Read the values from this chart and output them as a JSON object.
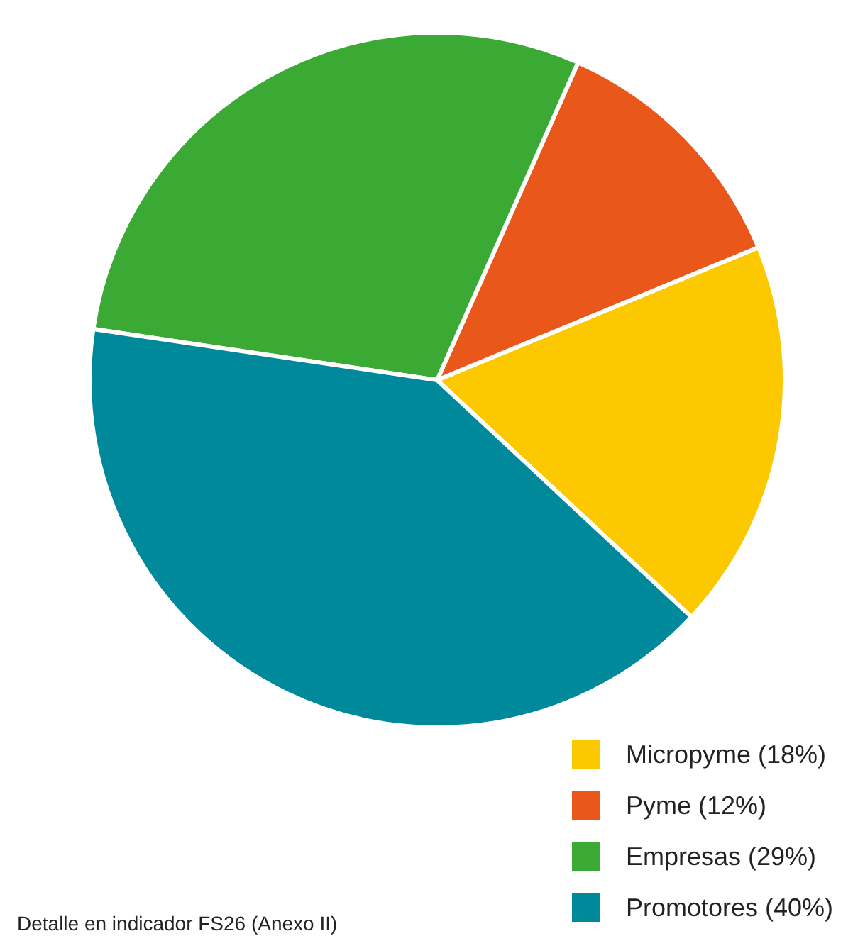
{
  "chart_data": {
    "type": "pie",
    "categories": [
      "Micropyme (18%)",
      "Pyme (12%)",
      "Empresas (29%)",
      "Promotores (40%)"
    ],
    "values": [
      18,
      12,
      29,
      40
    ],
    "colors": [
      "#fcc800",
      "#e9581a",
      "#3aaa35",
      "#00899a"
    ],
    "legend": "bottom right",
    "annotations": [
      "Detalle en indicador FS26 (Anexo II)"
    ]
  }
}
